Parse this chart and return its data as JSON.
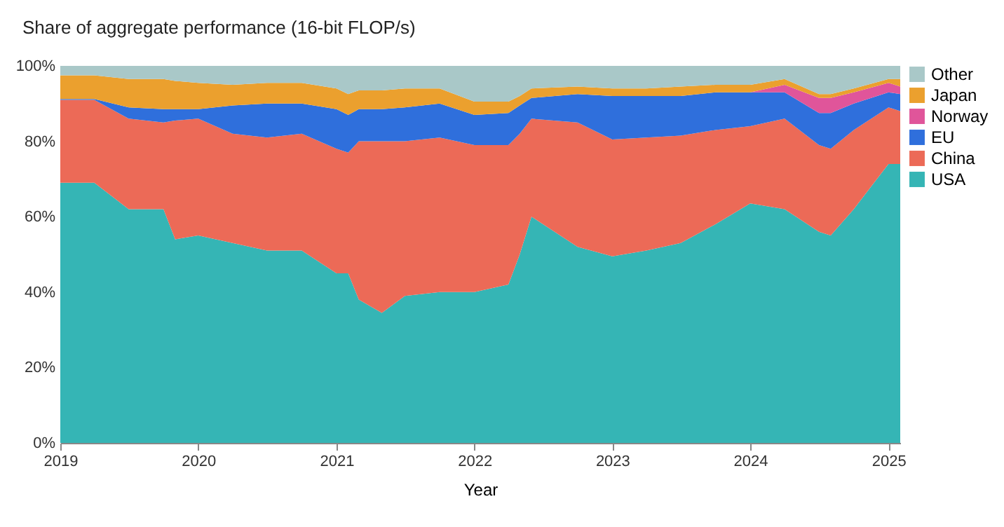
{
  "chart_data": {
    "type": "area",
    "stacked": true,
    "title": "Share of aggregate performance (16-bit FLOP/s)",
    "xlabel": "Year",
    "x": [
      "2019-01",
      "2019-04",
      "2019-07",
      "2019-10",
      "2019-11",
      "2020-01",
      "2020-04",
      "2020-07",
      "2020-10",
      "2021-01",
      "2021-02",
      "2021-03",
      "2021-05",
      "2021-07",
      "2021-10",
      "2022-01",
      "2022-04",
      "2022-05",
      "2022-06",
      "2022-10",
      "2023-01",
      "2023-04",
      "2023-07",
      "2023-10",
      "2024-01",
      "2024-04",
      "2024-07",
      "2024-08",
      "2024-10",
      "2025-01",
      "2025-02"
    ],
    "series": [
      {
        "name": "USA",
        "color": "#35b5b5",
        "values": [
          69,
          69,
          62,
          62,
          54,
          55,
          53,
          51,
          51,
          45,
          45,
          38,
          34.5,
          39,
          40,
          40,
          42,
          50,
          60,
          52,
          49.5,
          51,
          53,
          58,
          63.5,
          62,
          56,
          55,
          62,
          74,
          74
        ]
      },
      {
        "name": "China",
        "color": "#ec6a57",
        "values": [
          22,
          22,
          24,
          23,
          31.5,
          31,
          29,
          30,
          31,
          33,
          32,
          42,
          45.5,
          41,
          41,
          39,
          37,
          32,
          26,
          33,
          31,
          30,
          28.5,
          25,
          20.5,
          24,
          23,
          23,
          21,
          15,
          14
        ]
      },
      {
        "name": "EU",
        "color": "#2f6fdc",
        "values": [
          0.2,
          0.2,
          3,
          3.5,
          3,
          2.5,
          7.5,
          9,
          8,
          10.5,
          10,
          8.5,
          8.5,
          9,
          9,
          8,
          8.5,
          7.5,
          5.5,
          7.5,
          11.5,
          11,
          10.5,
          10,
          9,
          7,
          8.5,
          9.5,
          7,
          4,
          4.5
        ]
      },
      {
        "name": "Norway",
        "color": "#e0559a",
        "values": [
          0,
          0,
          0,
          0,
          0,
          0,
          0,
          0,
          0,
          0,
          0,
          0,
          0,
          0,
          0,
          0,
          0,
          0,
          0,
          0,
          0,
          0,
          0,
          0,
          0,
          2,
          4,
          4,
          3,
          2.5,
          2
        ]
      },
      {
        "name": "Japan",
        "color": "#eba02e",
        "values": [
          6.3,
          6.3,
          7.5,
          8,
          7.5,
          7,
          5.5,
          5.5,
          5.5,
          5.5,
          5.5,
          5,
          5,
          5,
          4,
          3.5,
          3,
          2.5,
          2.5,
          2,
          2,
          2,
          2.5,
          2,
          2,
          1.5,
          1,
          1,
          1,
          1,
          2
        ]
      },
      {
        "name": "Other",
        "color": "#a9c8c8",
        "values": [
          2.5,
          2.5,
          3.5,
          3.5,
          4,
          4.5,
          5,
          4.5,
          4.5,
          6,
          7.5,
          6.5,
          6.5,
          6,
          6,
          9.5,
          9.5,
          8,
          6,
          5.5,
          6,
          6,
          5.5,
          5,
          5,
          3.5,
          7.5,
          7.5,
          6,
          3.5,
          3.5
        ]
      }
    ],
    "xlim": [
      "2019-01",
      "2025-02"
    ],
    "xticks": [
      "2019",
      "2020",
      "2021",
      "2022",
      "2023",
      "2024",
      "2025"
    ],
    "ylim": [
      0,
      100
    ],
    "yticks": [
      {
        "value": 0,
        "label": "0%"
      },
      {
        "value": 20,
        "label": "20%"
      },
      {
        "value": 40,
        "label": "40%"
      },
      {
        "value": 60,
        "label": "60%"
      },
      {
        "value": 80,
        "label": "80%"
      },
      {
        "value": 100,
        "label": "100%"
      }
    ],
    "legend": "top right"
  }
}
